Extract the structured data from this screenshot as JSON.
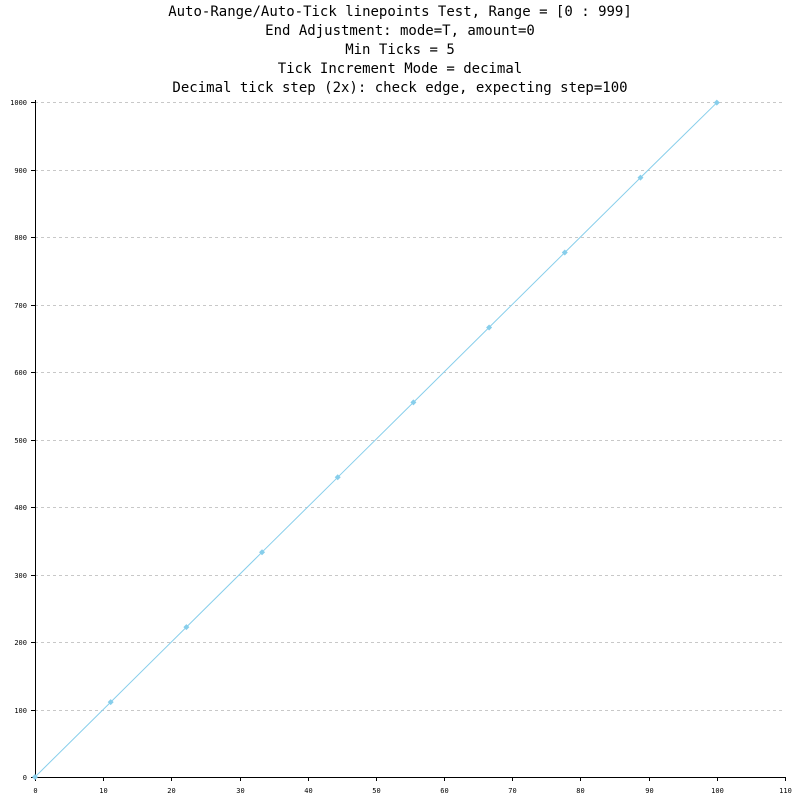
{
  "chart_data": {
    "type": "line",
    "subtype": "linepoints",
    "title_lines": [
      "Auto-Range/Auto-Tick linepoints Test, Range = [0 : 999]",
      "End Adjustment: mode=T, amount=0",
      "Min Ticks = 5",
      "Tick Increment Mode = decimal",
      "Decimal tick step (2x): check edge, expecting step=100"
    ],
    "xlabel": "",
    "ylabel": "",
    "xlim": [
      0,
      110
    ],
    "ylim": [
      0,
      1000
    ],
    "x_ticks": [
      0,
      10,
      20,
      30,
      40,
      50,
      60,
      70,
      80,
      90,
      100,
      110
    ],
    "y_ticks": [
      0,
      100,
      200,
      300,
      400,
      500,
      600,
      700,
      800,
      900,
      1000
    ],
    "grid": "horizontal dashed",
    "series": [
      {
        "color": "#87ceeb",
        "x": [
          0,
          11.1,
          22.2,
          33.3,
          44.4,
          55.5,
          66.6,
          77.7,
          88.8,
          100
        ],
        "y": [
          0,
          111,
          222,
          333,
          444,
          555,
          666,
          777,
          888,
          999
        ]
      }
    ]
  }
}
